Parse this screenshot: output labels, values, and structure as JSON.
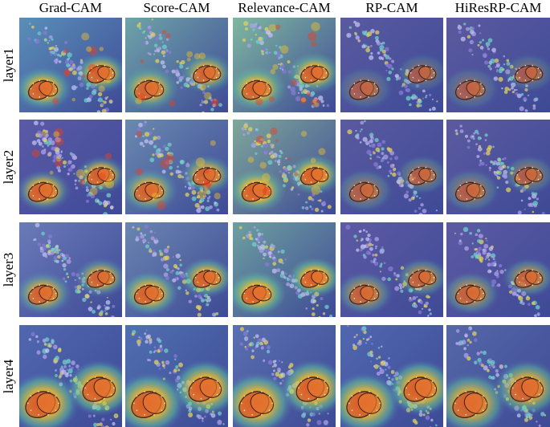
{
  "columns": [
    {
      "label": "Grad-CAM"
    },
    {
      "label": "Score-CAM"
    },
    {
      "label": "Relevance-CAM"
    },
    {
      "label": "RP-CAM"
    },
    {
      "label": "HiResRP-CAM"
    }
  ],
  "rows": [
    {
      "label": "layer1"
    },
    {
      "label": "layer2"
    },
    {
      "label": "layer3"
    },
    {
      "label": "layer4"
    }
  ]
}
